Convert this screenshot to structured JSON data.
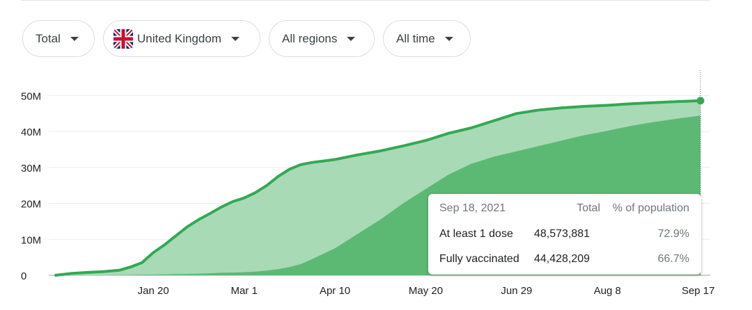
{
  "filters": {
    "metric": "Total",
    "country": "United Kingdom",
    "region": "All regions",
    "period": "All time"
  },
  "tooltip": {
    "date": "Sep 18, 2021",
    "col_total": "Total",
    "col_pct": "% of population",
    "rows": [
      {
        "label": "At least 1 dose",
        "total": "48,573,881",
        "pct": "72.9%"
      },
      {
        "label": "Fully vaccinated",
        "total": "44,428,209",
        "pct": "66.7%"
      }
    ]
  },
  "chart_data": {
    "type": "area",
    "x_ticks": [
      "Jan 20",
      "Mar 1",
      "Apr 10",
      "May 20",
      "Jun 29",
      "Aug 8",
      "Sep 17"
    ],
    "y_ticks": [
      "0",
      "10M",
      "20M",
      "30M",
      "40M",
      "50M"
    ],
    "ylim": [
      0,
      52
    ],
    "y_unit": "M",
    "grid": true,
    "x": [
      "Dec 8",
      "Dec 15",
      "Dec 22",
      "Dec 29",
      "Jan 5",
      "Jan 10",
      "Jan 15",
      "Jan 20",
      "Jan 25",
      "Jan 30",
      "Feb 4",
      "Feb 9",
      "Feb 14",
      "Feb 19",
      "Feb 24",
      "Mar 1",
      "Mar 6",
      "Mar 11",
      "Mar 16",
      "Mar 21",
      "Mar 26",
      "Mar 31",
      "Apr 5",
      "Apr 10",
      "Apr 20",
      "Apr 30",
      "May 10",
      "May 20",
      "May 30",
      "Jun 9",
      "Jun 19",
      "Jun 29",
      "Jul 9",
      "Jul 19",
      "Jul 29",
      "Aug 8",
      "Aug 18",
      "Aug 28",
      "Sep 7",
      "Sep 18"
    ],
    "series": [
      {
        "name": "At least 1 dose",
        "color": "#34a853",
        "values": [
          0,
          0.5,
          0.8,
          1.0,
          1.4,
          2.3,
          3.5,
          6.3,
          8.5,
          11.0,
          13.5,
          15.5,
          17.2,
          19.0,
          20.5,
          21.5,
          23.0,
          25.0,
          27.5,
          29.5,
          30.8,
          31.4,
          31.8,
          32.2,
          33.5,
          34.6,
          36.0,
          37.5,
          39.5,
          41.0,
          43.0,
          45.0,
          46.0,
          46.6,
          47.0,
          47.3,
          47.7,
          48.0,
          48.3,
          48.57
        ]
      },
      {
        "name": "Fully vaccinated",
        "color": "#5bb974",
        "values": [
          0,
          0,
          0,
          0,
          0.05,
          0.1,
          0.15,
          0.2,
          0.25,
          0.3,
          0.35,
          0.45,
          0.55,
          0.7,
          0.75,
          0.85,
          1.0,
          1.3,
          1.7,
          2.3,
          3.1,
          4.5,
          6.0,
          7.5,
          11.5,
          15.5,
          20.0,
          24.0,
          28.0,
          31.0,
          33.0,
          34.5,
          36.0,
          37.5,
          39.0,
          40.2,
          41.5,
          42.6,
          43.5,
          44.43
        ]
      }
    ]
  }
}
